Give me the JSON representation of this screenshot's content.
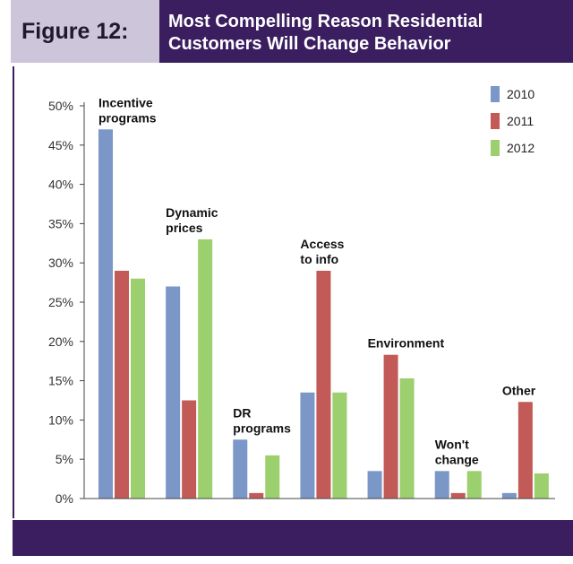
{
  "figure_label": "Figure 12:",
  "title_line1": "Most Compelling Reason Residential",
  "title_line2": "Customers Will Change Behavior",
  "chart_data": {
    "type": "bar",
    "categories": [
      "Incentive programs",
      "Dynamic prices",
      "DR programs",
      "Access to info",
      "Environment",
      "Won't change",
      "Other"
    ],
    "category_label_lines": [
      [
        "Incentive",
        "programs"
      ],
      [
        "Dynamic",
        "prices"
      ],
      [
        "DR",
        "programs"
      ],
      [
        "Access",
        "to info"
      ],
      [
        "Environment"
      ],
      [
        "Won't",
        "change"
      ],
      [
        "Other"
      ]
    ],
    "series": [
      {
        "name": "2010",
        "color": "#7a97c7",
        "values": [
          47,
          27,
          7.5,
          13.5,
          3.5,
          3.5,
          0.7
        ]
      },
      {
        "name": "2011",
        "color": "#c25a57",
        "values": [
          29,
          12.5,
          0.7,
          29,
          18.3,
          0.7,
          12.3
        ]
      },
      {
        "name": "2012",
        "color": "#9ccf6e",
        "values": [
          28,
          33,
          5.5,
          13.5,
          15.3,
          3.5,
          3.2
        ]
      }
    ],
    "ylim": [
      0,
      50
    ],
    "yticks": [
      0,
      5,
      10,
      15,
      20,
      25,
      30,
      35,
      40,
      45,
      50
    ],
    "ytick_labels": [
      "0%",
      "5%",
      "10%",
      "15%",
      "20%",
      "25%",
      "30%",
      "35%",
      "40%",
      "45%",
      "50%"
    ],
    "legend_position": "top-right",
    "grid": false
  }
}
